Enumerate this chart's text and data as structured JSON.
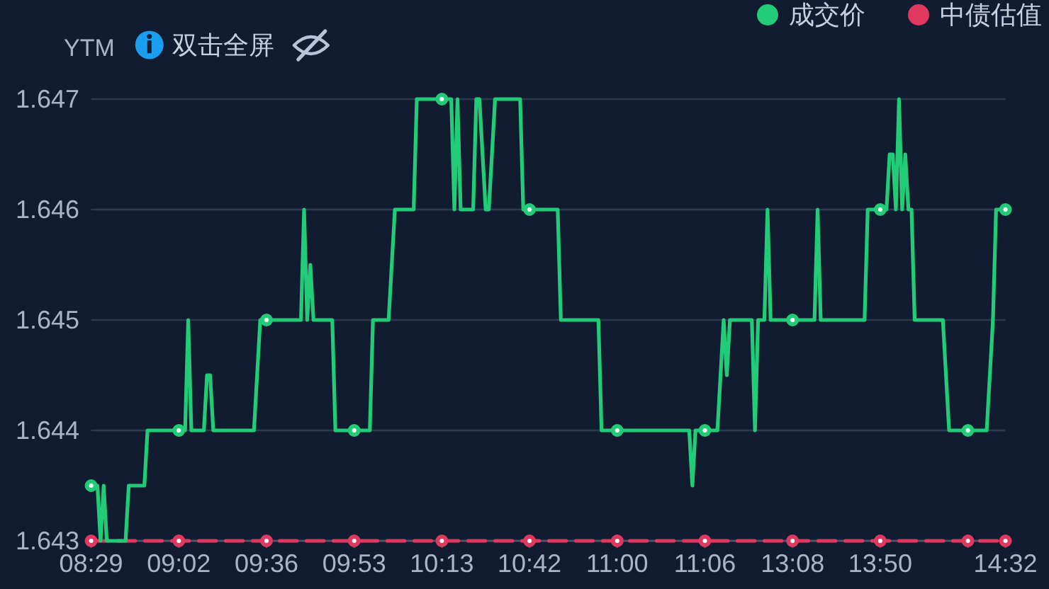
{
  "chart_data": {
    "type": "line",
    "ylabel": "YTM",
    "annotations": [
      "双击全屏"
    ],
    "categories": [
      "08:29",
      null,
      null,
      null,
      null,
      null,
      null,
      null,
      null,
      null,
      null,
      null,
      null,
      null,
      null,
      null,
      null,
      null,
      null,
      null,
      null,
      null,
      null,
      null,
      null,
      null,
      null,
      null,
      "09:02",
      null,
      null,
      null,
      null,
      null,
      null,
      null,
      null,
      null,
      null,
      null,
      null,
      null,
      null,
      null,
      null,
      null,
      null,
      null,
      null,
      null,
      null,
      null,
      null,
      null,
      null,
      null,
      "09:36",
      null,
      null,
      null,
      null,
      null,
      null,
      null,
      null,
      null,
      null,
      null,
      null,
      null,
      null,
      null,
      null,
      null,
      null,
      null,
      null,
      null,
      null,
      null,
      null,
      null,
      null,
      null,
      "09:53",
      null,
      null,
      null,
      null,
      null,
      null,
      null,
      null,
      null,
      null,
      null,
      null,
      null,
      null,
      null,
      null,
      null,
      null,
      null,
      null,
      null,
      null,
      null,
      null,
      null,
      null,
      null,
      "10:13",
      null,
      null,
      null,
      null,
      null,
      null,
      null,
      null,
      null,
      null,
      null,
      null,
      null,
      null,
      null,
      null,
      null,
      null,
      null,
      null,
      null,
      null,
      null,
      null,
      null,
      null,
      null,
      "10:42",
      null,
      null,
      null,
      null,
      null,
      null,
      null,
      null,
      null,
      null,
      null,
      null,
      null,
      null,
      null,
      null,
      null,
      null,
      null,
      null,
      null,
      null,
      null,
      null,
      null,
      null,
      null,
      "11:00",
      null,
      null,
      null,
      null,
      null,
      null,
      null,
      null,
      null,
      null,
      null,
      null,
      null,
      null,
      null,
      null,
      null,
      null,
      null,
      null,
      null,
      null,
      null,
      null,
      null,
      null,
      null,
      "11:06",
      null,
      null,
      null,
      null,
      null,
      null,
      null,
      null,
      null,
      null,
      null,
      null,
      null,
      null,
      null,
      null,
      null,
      null,
      null,
      null,
      null,
      null,
      null,
      null,
      null,
      null,
      null,
      "13:08",
      null,
      null,
      null,
      null,
      null,
      null,
      null,
      null,
      null,
      null,
      null,
      null,
      null,
      null,
      null,
      null,
      null,
      null,
      null,
      null,
      null,
      null,
      null,
      null,
      null,
      null,
      null,
      "13:50",
      null,
      null,
      null,
      null,
      null,
      null,
      null,
      null,
      null,
      null,
      null,
      null,
      null,
      null,
      null,
      null,
      null,
      null,
      null,
      null,
      null,
      null,
      null,
      null,
      null,
      null,
      null,
      null,
      null,
      null,
      null,
      null,
      null,
      null,
      null,
      null,
      null,
      null,
      null,
      "14:32"
    ],
    "series": [
      {
        "name": "成交价",
        "color": "#22cc77",
        "line_style": "solid",
        "values": [
          1.6435,
          1.6435,
          1.6435,
          1.643,
          1.6435,
          1.643,
          1.643,
          1.643,
          1.643,
          1.643,
          1.643,
          1.643,
          1.6435,
          1.6435,
          1.6435,
          1.6435,
          1.6435,
          1.6435,
          1.644,
          1.644,
          1.644,
          1.644,
          1.644,
          1.644,
          1.644,
          1.644,
          1.644,
          1.644,
          1.644,
          1.644,
          1.644,
          1.645,
          1.644,
          1.644,
          1.644,
          1.644,
          1.644,
          1.6445,
          1.6445,
          1.644,
          1.644,
          1.644,
          1.644,
          1.644,
          1.644,
          1.644,
          1.644,
          1.644,
          1.644,
          1.644,
          1.644,
          1.644,
          1.644,
          1.6445,
          1.645,
          1.645,
          1.645,
          1.645,
          1.645,
          1.645,
          1.645,
          1.645,
          1.645,
          1.645,
          1.645,
          1.645,
          1.645,
          1.645,
          1.646,
          1.645,
          1.6455,
          1.645,
          1.645,
          1.645,
          1.645,
          1.645,
          1.645,
          1.645,
          1.644,
          1.644,
          1.644,
          1.644,
          1.644,
          1.644,
          1.644,
          1.644,
          1.644,
          1.644,
          1.644,
          1.644,
          1.645,
          1.645,
          1.645,
          1.645,
          1.645,
          1.645,
          1.6455,
          1.646,
          1.646,
          1.646,
          1.646,
          1.646,
          1.646,
          1.646,
          1.647,
          1.647,
          1.647,
          1.647,
          1.647,
          1.647,
          1.647,
          1.647,
          1.647,
          1.647,
          1.647,
          1.647,
          1.646,
          1.647,
          1.646,
          1.646,
          1.646,
          1.646,
          1.646,
          1.647,
          1.647,
          1.6465,
          1.646,
          1.646,
          1.6465,
          1.647,
          1.647,
          1.647,
          1.647,
          1.647,
          1.647,
          1.647,
          1.647,
          1.647,
          1.646,
          1.646,
          1.646,
          1.646,
          1.646,
          1.646,
          1.646,
          1.646,
          1.646,
          1.646,
          1.646,
          1.646,
          1.645,
          1.645,
          1.645,
          1.645,
          1.645,
          1.645,
          1.645,
          1.645,
          1.645,
          1.645,
          1.645,
          1.645,
          1.645,
          1.644,
          1.644,
          1.644,
          1.644,
          1.644,
          1.644,
          1.644,
          1.644,
          1.644,
          1.644,
          1.644,
          1.644,
          1.644,
          1.644,
          1.644,
          1.644,
          1.644,
          1.644,
          1.644,
          1.644,
          1.644,
          1.644,
          1.644,
          1.644,
          1.644,
          1.644,
          1.644,
          1.644,
          1.644,
          1.6435,
          1.644,
          1.644,
          1.644,
          1.644,
          1.644,
          1.644,
          1.644,
          1.644,
          1.6445,
          1.645,
          1.6445,
          1.645,
          1.645,
          1.645,
          1.645,
          1.645,
          1.645,
          1.645,
          1.645,
          1.644,
          1.645,
          1.645,
          1.645,
          1.646,
          1.645,
          1.645,
          1.645,
          1.645,
          1.645,
          1.645,
          1.645,
          1.645,
          1.645,
          1.645,
          1.645,
          1.645,
          1.645,
          1.645,
          1.645,
          1.646,
          1.645,
          1.645,
          1.645,
          1.645,
          1.645,
          1.645,
          1.645,
          1.645,
          1.645,
          1.645,
          1.645,
          1.645,
          1.645,
          1.645,
          1.645,
          1.646,
          1.646,
          1.646,
          1.646,
          1.646,
          1.646,
          1.646,
          1.6465,
          1.6465,
          1.646,
          1.647,
          1.646,
          1.6465,
          1.646,
          1.646,
          1.645,
          1.645,
          1.645,
          1.645,
          1.645,
          1.645,
          1.645,
          1.645,
          1.645,
          1.645,
          1.6445,
          1.644,
          1.644,
          1.644,
          1.644,
          1.644,
          1.644,
          1.644,
          1.644,
          1.644,
          1.644,
          1.644,
          1.644,
          1.644,
          1.6445,
          1.645,
          1.646,
          1.646,
          1.646,
          1.646
        ]
      },
      {
        "name": "中债估值",
        "color": "#e0395f",
        "line_style": "dashed",
        "values": [
          1.643,
          1.643,
          1.643,
          1.643,
          1.643,
          1.643,
          1.643,
          1.643,
          1.643,
          1.643,
          1.643,
          1.643,
          1.643,
          1.643,
          1.643,
          1.643,
          1.643,
          1.643,
          1.643,
          1.643,
          1.643,
          1.643,
          1.643,
          1.643,
          1.643,
          1.643,
          1.643,
          1.643,
          1.643,
          1.643,
          1.643,
          1.643,
          1.643,
          1.643,
          1.643,
          1.643,
          1.643,
          1.643,
          1.643,
          1.643,
          1.643,
          1.643,
          1.643,
          1.643,
          1.643,
          1.643,
          1.643,
          1.643,
          1.643,
          1.643,
          1.643,
          1.643,
          1.643,
          1.643,
          1.643,
          1.643,
          1.643,
          1.643,
          1.643,
          1.643,
          1.643,
          1.643,
          1.643,
          1.643,
          1.643,
          1.643,
          1.643,
          1.643,
          1.643,
          1.643,
          1.643,
          1.643,
          1.643,
          1.643,
          1.643,
          1.643,
          1.643,
          1.643,
          1.643,
          1.643,
          1.643,
          1.643,
          1.643,
          1.643,
          1.643,
          1.643,
          1.643,
          1.643,
          1.643,
          1.643,
          1.643,
          1.643,
          1.643,
          1.643,
          1.643,
          1.643,
          1.643,
          1.643,
          1.643,
          1.643,
          1.643,
          1.643,
          1.643,
          1.643,
          1.643,
          1.643,
          1.643,
          1.643,
          1.643,
          1.643,
          1.643,
          1.643,
          1.643,
          1.643,
          1.643,
          1.643,
          1.643,
          1.643,
          1.643,
          1.643,
          1.643,
          1.643,
          1.643,
          1.643,
          1.643,
          1.643,
          1.643,
          1.643,
          1.643,
          1.643,
          1.643,
          1.643,
          1.643,
          1.643,
          1.643,
          1.643,
          1.643,
          1.643,
          1.643,
          1.643,
          1.643,
          1.643,
          1.643,
          1.643,
          1.643,
          1.643,
          1.643,
          1.643,
          1.643,
          1.643,
          1.643,
          1.643,
          1.643,
          1.643,
          1.643,
          1.643,
          1.643,
          1.643,
          1.643,
          1.643,
          1.643,
          1.643,
          1.643,
          1.643,
          1.643,
          1.643,
          1.643,
          1.643,
          1.643,
          1.643,
          1.643,
          1.643,
          1.643,
          1.643,
          1.643,
          1.643,
          1.643,
          1.643,
          1.643,
          1.643,
          1.643,
          1.643,
          1.643,
          1.643,
          1.643,
          1.643,
          1.643,
          1.643,
          1.643,
          1.643,
          1.643,
          1.643,
          1.643,
          1.643,
          1.643,
          1.643,
          1.643,
          1.643,
          1.643,
          1.643,
          1.643,
          1.643,
          1.643,
          1.643,
          1.643,
          1.643,
          1.643,
          1.643,
          1.643,
          1.643,
          1.643,
          1.643,
          1.643,
          1.643,
          1.643,
          1.643,
          1.643,
          1.643,
          1.643,
          1.643,
          1.643,
          1.643,
          1.643,
          1.643,
          1.643,
          1.643,
          1.643,
          1.643,
          1.643,
          1.643,
          1.643,
          1.643,
          1.643,
          1.643,
          1.643,
          1.643,
          1.643,
          1.643,
          1.643,
          1.643,
          1.643,
          1.643,
          1.643,
          1.643,
          1.643,
          1.643,
          1.643,
          1.643,
          1.643,
          1.643,
          1.643,
          1.643,
          1.643,
          1.643,
          1.643,
          1.643,
          1.643,
          1.643,
          1.643,
          1.643,
          1.643,
          1.643,
          1.643,
          1.643,
          1.643,
          1.643,
          1.643,
          1.643,
          1.643,
          1.643,
          1.643,
          1.643,
          1.643,
          1.643,
          1.643,
          1.643,
          1.643,
          1.643,
          1.643,
          1.643,
          1.643,
          1.643,
          1.643,
          1.643,
          1.643,
          1.643,
          1.643,
          1.643,
          1.643,
          1.643,
          1.643,
          1.643,
          1.643
        ]
      }
    ],
    "ylim": [
      1.643,
      1.647
    ],
    "yticks": [
      1.643,
      1.644,
      1.645,
      1.646,
      1.647
    ],
    "grid": "y",
    "legend": "top right"
  }
}
